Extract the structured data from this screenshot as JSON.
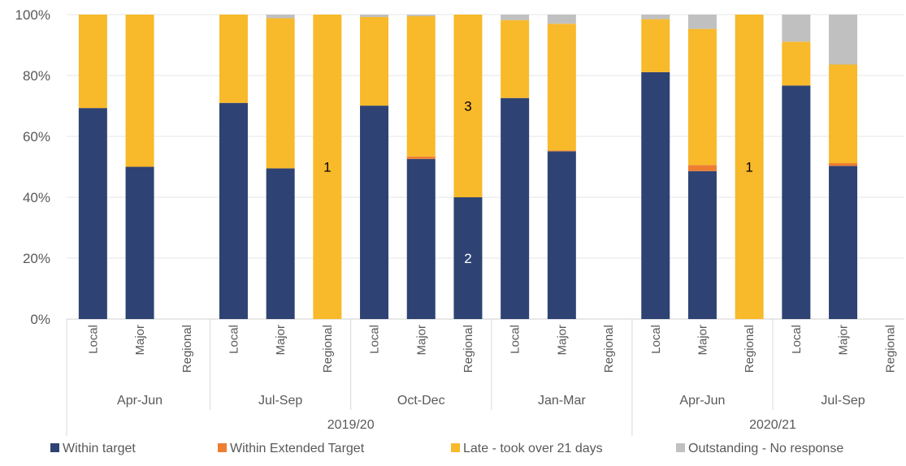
{
  "chart_data": {
    "type": "bar",
    "stacked": true,
    "percent": true,
    "ylim": [
      0,
      100
    ],
    "yticks": [
      "0%",
      "20%",
      "40%",
      "60%",
      "80%",
      "100%"
    ],
    "grid": true,
    "legend_position": "bottom",
    "series": [
      {
        "name": "Within target",
        "color": "#2E4374"
      },
      {
        "name": "Within Extended Target",
        "color": "#ED7D31"
      },
      {
        "name": "Late - took over 21 days",
        "color": "#F8B92A"
      },
      {
        "name": "Outstanding - No response",
        "color": "#C0C0C0"
      }
    ],
    "years": [
      {
        "label": "2019/20",
        "quarters": [
          {
            "label": "Apr-Jun",
            "categories": [
              {
                "label": "Local",
                "values": [
                  69.3,
                  0,
                  30.7,
                  0
                ]
              },
              {
                "label": "Major",
                "values": [
                  50,
                  0,
                  50,
                  0
                ]
              },
              {
                "label": "Regional",
                "values": [
                  0,
                  0,
                  0,
                  0
                ]
              }
            ]
          },
          {
            "label": "Jul-Sep",
            "categories": [
              {
                "label": "Local",
                "values": [
                  71,
                  0,
                  29,
                  0
                ]
              },
              {
                "label": "Major",
                "values": [
                  49.5,
                  0,
                  49.3,
                  1.2
                ]
              },
              {
                "label": "Regional",
                "values": [
                  0,
                  0,
                  100,
                  0
                ],
                "labels": {
                  "2": "1"
                }
              }
            ]
          },
          {
            "label": "Oct-Dec",
            "categories": [
              {
                "label": "Local",
                "values": [
                  70.1,
                  0,
                  29.1,
                  0.8
                ]
              },
              {
                "label": "Major",
                "values": [
                  52.6,
                  0.8,
                  46.1,
                  0.5
                ]
              },
              {
                "label": "Regional",
                "values": [
                  40,
                  0,
                  60,
                  0
                ],
                "labels": {
                  "0": "2",
                  "2": "3"
                }
              }
            ]
          },
          {
            "label": "Jan-Mar",
            "categories": [
              {
                "label": "Local",
                "values": [
                  72.6,
                  0,
                  25.6,
                  1.8
                ]
              },
              {
                "label": "Major",
                "values": [
                  55.1,
                  0.3,
                  41.6,
                  3
                ]
              },
              {
                "label": "Regional",
                "values": [
                  0,
                  0,
                  0,
                  0
                ]
              }
            ]
          }
        ]
      },
      {
        "label": "2020/21",
        "quarters": [
          {
            "label": "Apr-Jun",
            "categories": [
              {
                "label": "Local",
                "values": [
                  81.1,
                  0,
                  17.4,
                  1.5
                ]
              },
              {
                "label": "Major",
                "values": [
                  48.6,
                  2,
                  44.7,
                  4.7
                ]
              },
              {
                "label": "Regional",
                "values": [
                  0,
                  0,
                  100,
                  0
                ],
                "labels": {
                  "2": "1"
                }
              }
            ]
          },
          {
            "label": "Jul-Sep",
            "categories": [
              {
                "label": "Local",
                "values": [
                  76.7,
                  0,
                  14.4,
                  8.9
                ]
              },
              {
                "label": "Major",
                "values": [
                  50.3,
                  0.9,
                  32.4,
                  16.4
                ]
              },
              {
                "label": "Regional",
                "values": [
                  0,
                  0,
                  0,
                  0
                ]
              }
            ]
          }
        ]
      }
    ]
  }
}
